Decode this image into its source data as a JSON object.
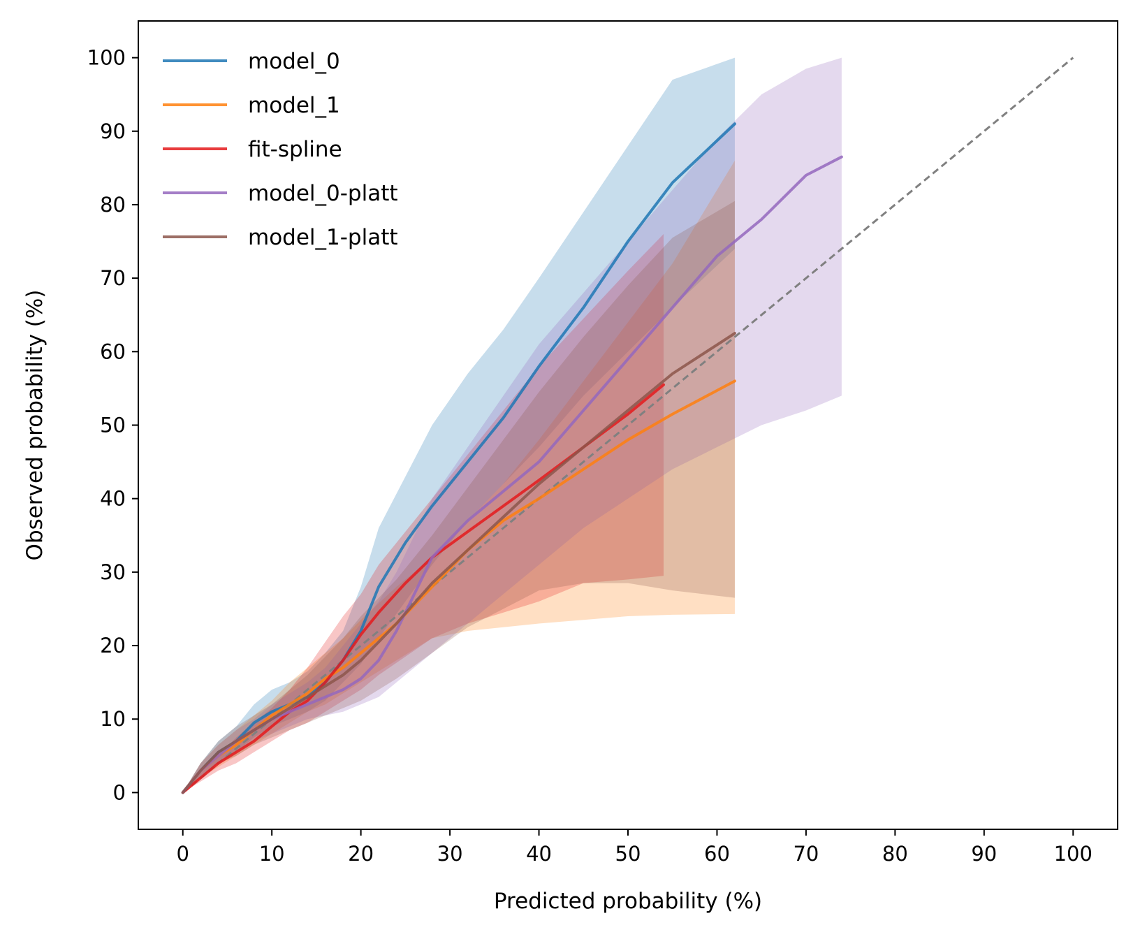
{
  "chart_data": {
    "type": "line",
    "title": "",
    "xlabel": "Predicted probability (%)",
    "ylabel": "Observed probability (%)",
    "xlim": [
      -5,
      105
    ],
    "ylim": [
      -5,
      105
    ],
    "xticks": [
      0,
      10,
      20,
      30,
      40,
      50,
      60,
      70,
      80,
      90,
      100
    ],
    "yticks": [
      0,
      10,
      20,
      30,
      40,
      50,
      60,
      70,
      80,
      90,
      100
    ],
    "grid": false,
    "legend_position": "upper-left",
    "reference_line": {
      "x": [
        0,
        100
      ],
      "y": [
        0,
        100
      ],
      "style": "dashed",
      "color": "#808080"
    },
    "series": [
      {
        "name": "model_0",
        "color": "#1f77b4",
        "x": [
          0,
          2,
          4,
          6,
          8,
          10,
          12,
          14,
          16,
          18,
          20,
          22,
          25,
          28,
          32,
          36,
          40,
          45,
          50,
          55,
          62
        ],
        "y": [
          0,
          3,
          5.5,
          7,
          9.5,
          11,
          12,
          13,
          15,
          18,
          22,
          28,
          34,
          39,
          45,
          51,
          58,
          66,
          75,
          83,
          91
        ],
        "band_lower": [
          0,
          2,
          4,
          5.5,
          7.5,
          9,
          10,
          11,
          12.5,
          15,
          17.5,
          21,
          26,
          31,
          37,
          42,
          47,
          54,
          60,
          66,
          74
        ],
        "band_upper": [
          0,
          4,
          7,
          9,
          12,
          14,
          15,
          16.5,
          19,
          22,
          28,
          36,
          43,
          50,
          57,
          63,
          70,
          79,
          88,
          97,
          100
        ]
      },
      {
        "name": "model_1",
        "color": "#ff7f0e",
        "x": [
          0,
          2,
          4,
          6,
          8,
          10,
          12,
          14,
          16,
          18,
          20,
          24,
          28,
          32,
          36,
          40,
          45,
          50,
          55,
          62
        ],
        "y": [
          0,
          3,
          5,
          6.5,
          8.5,
          10.5,
          12,
          13.5,
          15.5,
          17,
          19,
          23,
          28,
          33,
          37,
          40,
          44,
          48,
          51.5,
          56
        ],
        "band_lower": [
          0,
          2,
          3.5,
          5,
          6.5,
          8,
          9.5,
          11,
          12,
          13.5,
          15,
          18,
          21,
          22,
          22.5,
          23,
          23.5,
          24,
          24.2,
          24.3
        ],
        "band_upper": [
          0,
          4,
          6.5,
          8.5,
          10.5,
          12.5,
          15,
          17,
          19,
          21,
          23.5,
          28,
          32,
          37,
          42,
          48,
          56,
          64,
          72,
          86
        ]
      },
      {
        "name": "fit-spline",
        "color": "#e41a1c",
        "x": [
          0,
          2,
          4,
          6,
          8,
          10,
          12,
          14,
          16,
          18,
          20,
          22,
          25,
          28,
          32,
          36,
          40,
          45,
          50,
          54
        ],
        "y": [
          0,
          2,
          4,
          5.5,
          7,
          9,
          11,
          12.5,
          15,
          18,
          21.5,
          24.5,
          28.5,
          32,
          35.5,
          39,
          42.5,
          47,
          51.5,
          55.5
        ],
        "band_lower": [
          0,
          1.5,
          3,
          4,
          5.5,
          7,
          8.5,
          9.5,
          11,
          12.5,
          14,
          16,
          18.5,
          21,
          23,
          24.5,
          26,
          28.5,
          29,
          29.5
        ],
        "band_upper": [
          0,
          3,
          5,
          7.5,
          9.5,
          11.5,
          14,
          17,
          20.5,
          24,
          27,
          31,
          35.5,
          40,
          46,
          52,
          58,
          64.5,
          71,
          76
        ]
      },
      {
        "name": "model_0-platt",
        "color": "#9467bd",
        "x": [
          0,
          2,
          4,
          6,
          8,
          10,
          12,
          14,
          16,
          18,
          20,
          22,
          24,
          26,
          28,
          32,
          36,
          40,
          45,
          50,
          55,
          60,
          65,
          70,
          74
        ],
        "y": [
          0,
          3,
          5,
          7,
          8.5,
          10,
          11,
          12,
          13,
          14,
          15.5,
          18,
          22,
          27,
          32,
          37,
          41,
          45,
          52,
          59,
          66,
          73,
          78,
          84,
          86.5
        ],
        "band_lower": [
          0,
          2,
          4,
          5.5,
          7,
          8,
          9,
          10,
          10.5,
          11,
          12,
          13,
          15,
          17,
          19,
          23,
          27,
          31,
          36,
          40,
          44,
          47,
          50,
          52,
          54
        ],
        "band_upper": [
          0,
          4,
          6.5,
          8.5,
          10,
          12,
          13.5,
          15,
          17,
          20,
          23,
          26,
          30,
          35,
          40,
          47,
          54,
          61,
          68,
          75,
          82,
          89,
          95,
          98.5,
          100
        ]
      },
      {
        "name": "model_1-platt",
        "color": "#8c564b",
        "x": [
          0,
          2,
          4,
          6,
          8,
          10,
          12,
          14,
          16,
          18,
          20,
          24,
          28,
          32,
          36,
          40,
          45,
          50,
          55,
          62
        ],
        "y": [
          0,
          3,
          5.5,
          7,
          8.5,
          10,
          11.5,
          13,
          14.5,
          16,
          18,
          23,
          28.5,
          33,
          37.5,
          42,
          47,
          52,
          57,
          62.5
        ],
        "band_lower": [
          0,
          2,
          4,
          5,
          6.5,
          7.5,
          8.5,
          9.5,
          10.5,
          11.5,
          12.5,
          15.5,
          19,
          22.5,
          25,
          27.5,
          28.5,
          28.5,
          27.5,
          26.5
        ],
        "band_upper": [
          0,
          4,
          7,
          9,
          10.5,
          12,
          14,
          16,
          18.5,
          21,
          24,
          29,
          35,
          41.5,
          48,
          54.5,
          62,
          69,
          75.5,
          80.5
        ]
      }
    ]
  }
}
